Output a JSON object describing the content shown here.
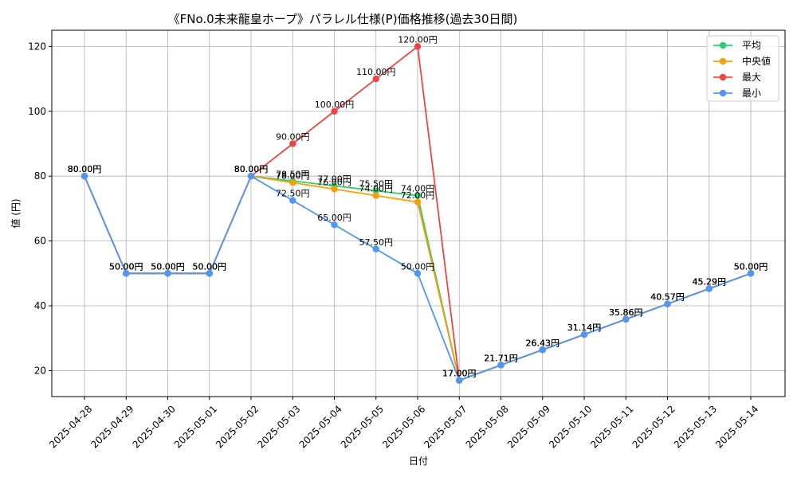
{
  "chart_data": {
    "type": "line",
    "title": "《FNo.0未来龍皇ホープ》パラレル仕様(P)価格推移(過去30日間)",
    "xlabel": "日付",
    "ylabel": "値 (円)",
    "ylim": [
      12,
      125
    ],
    "yticks": [
      20,
      40,
      60,
      80,
      100,
      120
    ],
    "grid": true,
    "legend_position": "top-right",
    "categories": [
      "2025-04-28",
      "2025-04-29",
      "2025-04-30",
      "2025-05-01",
      "2025-05-02",
      "2025-05-03",
      "2025-05-04",
      "2025-05-05",
      "2025-05-06",
      "2025-05-07",
      "2025-05-08",
      "2025-05-09",
      "2025-05-10",
      "2025-05-11",
      "2025-05-12",
      "2025-05-13",
      "2025-05-14"
    ],
    "series": [
      {
        "name": "平均",
        "color": "#2ecc71",
        "values": [
          80,
          50,
          50,
          50,
          80,
          78.5,
          77,
          75.5,
          74,
          17,
          21.71,
          26.43,
          31.14,
          35.86,
          40.57,
          45.29,
          50
        ],
        "labels": [
          "80.00円",
          "50.00円",
          "50.00円",
          "50.00円",
          "80.00円",
          "78.50円",
          "77.00円",
          "75.50円",
          "74.00円",
          "17.00円",
          "21.71円",
          "26.43円",
          "31.14円",
          "35.86円",
          "40.57円",
          "45.29円",
          "50.00円"
        ]
      },
      {
        "name": "中央値",
        "color": "#f5a10a",
        "values": [
          80,
          50,
          50,
          50,
          80,
          78,
          76,
          74,
          72,
          17,
          21.71,
          26.43,
          31.14,
          35.86,
          40.57,
          45.29,
          50
        ],
        "labels": [
          "80.00円",
          "50.00円",
          "50.00円",
          "50.00円",
          "80.00円",
          "78.00円",
          "76.00円",
          "74.00円",
          "72.00円",
          "17.00円",
          "21.71円",
          "26.43円",
          "31.14円",
          "35.86円",
          "40.57円",
          "45.29円",
          "50.00円"
        ]
      },
      {
        "name": "最大",
        "color": "#ef4444",
        "values": [
          80,
          50,
          50,
          50,
          80,
          90,
          100,
          110,
          120,
          17,
          21.71,
          26.43,
          31.14,
          35.86,
          40.57,
          45.29,
          50
        ],
        "labels": [
          "80.00円",
          "50.00円",
          "50.00円",
          "50.00円",
          "80.00円",
          "90.00円",
          "100.00円",
          "110.00円",
          "120.00円",
          "17.00円",
          "21.71円",
          "26.43円",
          "31.14円",
          "35.86円",
          "40.57円",
          "45.29円",
          "50.00円"
        ]
      },
      {
        "name": "最小",
        "color": "#4e97f5",
        "values": [
          80,
          50,
          50,
          50,
          80,
          72.5,
          65,
          57.5,
          50,
          17,
          21.71,
          26.43,
          31.14,
          35.86,
          40.57,
          45.29,
          50
        ],
        "labels": [
          "80.00円",
          "50.00円",
          "50.00円",
          "50.00円",
          "80.00円",
          "72.50円",
          "65.00円",
          "57.50円",
          "50.00円",
          "17.00円",
          "21.71円",
          "26.43円",
          "31.14円",
          "35.86円",
          "40.57円",
          "45.29円",
          "50.00円"
        ]
      }
    ]
  }
}
